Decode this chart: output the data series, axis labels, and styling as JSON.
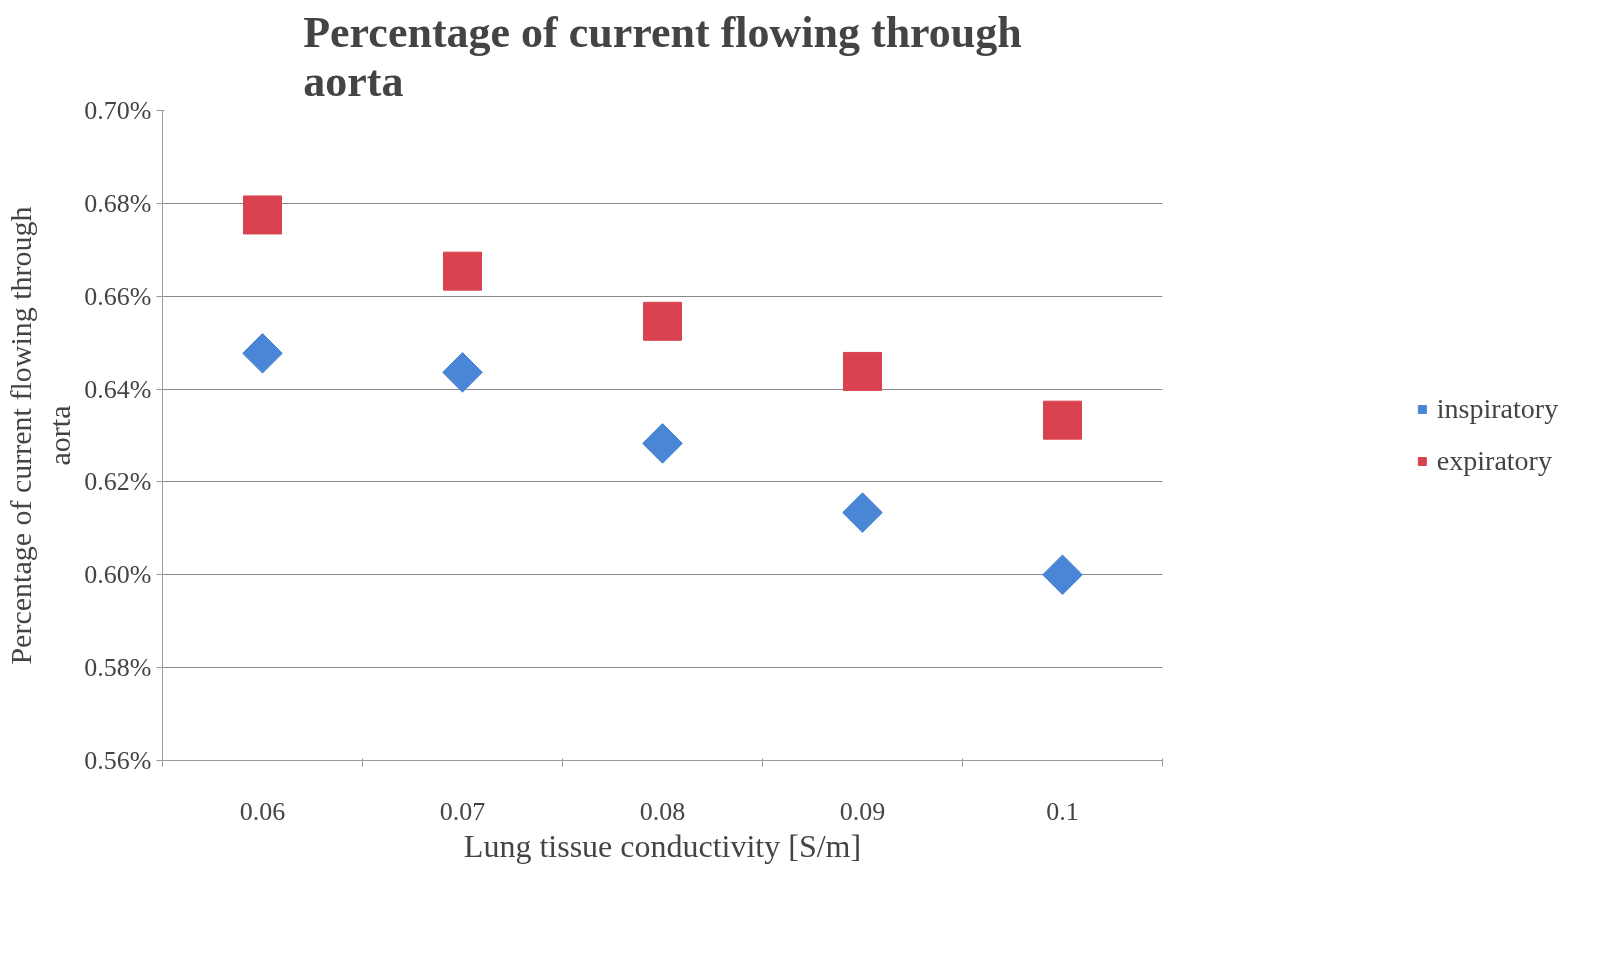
{
  "chart_data": {
    "type": "scatter",
    "title": "Percentage of current flowing through aorta",
    "xlabel": "Lung tissue conductivity [S/m]",
    "ylabel": "Percentage of current flowing through aorta",
    "categories": [
      "0.06",
      "0.07",
      "0.08",
      "0.09",
      "0.1"
    ],
    "series": [
      {
        "name": "inspiratory",
        "color": "#4a86d6",
        "marker": "diamond",
        "values": [
          0.6477,
          0.6436,
          0.6283,
          0.6134,
          0.6
        ]
      },
      {
        "name": "expiratory",
        "color": "#d9424f",
        "marker": "square",
        "values": [
          0.6775,
          0.6654,
          0.6546,
          0.6438,
          0.6333
        ]
      }
    ],
    "ylim": [
      0.56,
      0.7
    ],
    "yticks": [
      {
        "value": 0.56,
        "label": "0.56%"
      },
      {
        "value": 0.58,
        "label": "0.58%"
      },
      {
        "value": 0.6,
        "label": "0.60%"
      },
      {
        "value": 0.62,
        "label": "0.62%"
      },
      {
        "value": 0.64,
        "label": "0.64%"
      },
      {
        "value": 0.66,
        "label": "0.66%"
      },
      {
        "value": 0.68,
        "label": "0.68%"
      },
      {
        "value": 0.7,
        "label": "0.70%"
      }
    ],
    "grid": "y",
    "legend": "right"
  }
}
